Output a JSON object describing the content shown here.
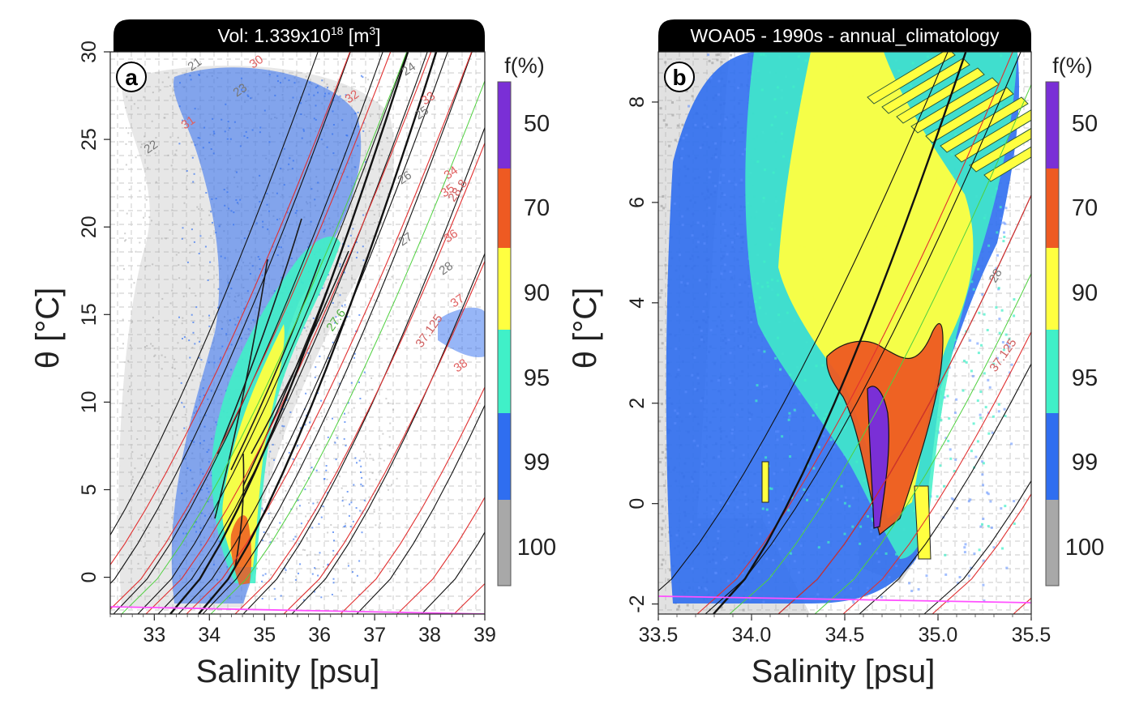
{
  "panels": [
    {
      "id": "a",
      "letter": "a",
      "header": "Vol: 1.339x10",
      "header_sup": "18",
      "header_tail": " [m",
      "header_sup2": "3",
      "header_end": "]",
      "xlabel": "Salinity [psu]",
      "ylabel": "θ [°C]",
      "xlim": [
        32.2,
        39.0
      ],
      "ylim": [
        -2.1,
        30
      ],
      "xticks": [
        "33",
        "34",
        "35",
        "36",
        "37",
        "38",
        "39"
      ],
      "xtick_values": [
        33,
        34,
        35,
        36,
        37,
        38,
        39
      ],
      "yticks": [
        "0",
        "5",
        "10",
        "15",
        "20",
        "25",
        "30"
      ],
      "ytick_values": [
        0,
        5,
        10,
        15,
        20,
        25,
        30
      ],
      "sigma0_labels": [
        "21",
        "22",
        "23",
        "24",
        "25",
        "26",
        "27",
        "28"
      ],
      "sigma2_labels": [
        "30",
        "31",
        "32",
        "33",
        "34",
        "35",
        "36",
        "37",
        "38"
      ],
      "special_labels": [
        "37.125",
        "27.6",
        "28.8"
      ],
      "cbar_title": "f(%)",
      "cbar_labels": [
        "50",
        "70",
        "90",
        "95",
        "99",
        "100"
      ]
    },
    {
      "id": "b",
      "letter": "b",
      "header": "WOA05 - 1990s - annual_climatology",
      "xlabel": "Salinity [psu]",
      "ylabel": "θ [°C]",
      "xlim": [
        33.5,
        35.5
      ],
      "ylim": [
        -2.2,
        9.0
      ],
      "xticks": [
        "33.5",
        "34.0",
        "34.5",
        "35.0",
        "35.5"
      ],
      "xtick_values": [
        33.5,
        34.0,
        34.5,
        35.0,
        35.5
      ],
      "yticks": [
        "-2",
        "0",
        "2",
        "4",
        "6",
        "8"
      ],
      "ytick_values": [
        -2,
        0,
        2,
        4,
        6,
        8
      ],
      "sigma0_labels": [
        "28"
      ],
      "special_labels": [
        "37.125"
      ],
      "cbar_title": "f(%)",
      "cbar_labels": [
        "50",
        "70",
        "90",
        "95",
        "99",
        "100"
      ]
    }
  ],
  "colors": {
    "c50": "#7a2fd6",
    "c70": "#ee5a22",
    "c90": "#ffff40",
    "c95": "#40f0c8",
    "c99": "#2f6ef0",
    "c100": "#a8a8a8",
    "sigma0_line": "#111111",
    "sigma2_line": "#e03030",
    "neutral_line": "#50d040",
    "freezing_line": "#ff50ff"
  },
  "chart_data": [
    {
      "type": "heatmap",
      "title": "Vol: 1.339x10^18 [m^3]",
      "xlabel": "Salinity [psu]",
      "ylabel": "θ [°C]",
      "xlim": [
        32.2,
        39.0
      ],
      "ylim": [
        -2.1,
        30
      ],
      "colorbar": {
        "label": "f(%)",
        "levels": [
          50,
          70,
          90,
          95,
          99,
          100
        ]
      },
      "core_ridge": [
        {
          "x": 34.7,
          "y": 0
        },
        {
          "x": 34.8,
          "y": 5
        },
        {
          "x": 35.0,
          "y": 10
        },
        {
          "x": 35.4,
          "y": 15
        },
        {
          "x": 35.8,
          "y": 20
        }
      ]
    },
    {
      "type": "heatmap",
      "title": "WOA05 - 1990s - annual_climatology",
      "xlabel": "Salinity [psu]",
      "ylabel": "θ [°C]",
      "xlim": [
        33.5,
        35.5
      ],
      "ylim": [
        -2.2,
        9.0
      ],
      "colorbar": {
        "label": "f(%)",
        "levels": [
          50,
          70,
          90,
          95,
          99,
          100
        ]
      },
      "core_ridge": [
        {
          "x": 34.67,
          "y": -0.8
        },
        {
          "x": 34.7,
          "y": 1
        },
        {
          "x": 34.72,
          "y": 2
        },
        {
          "x": 34.9,
          "y": 3
        },
        {
          "x": 35.0,
          "y": 4
        }
      ]
    }
  ]
}
